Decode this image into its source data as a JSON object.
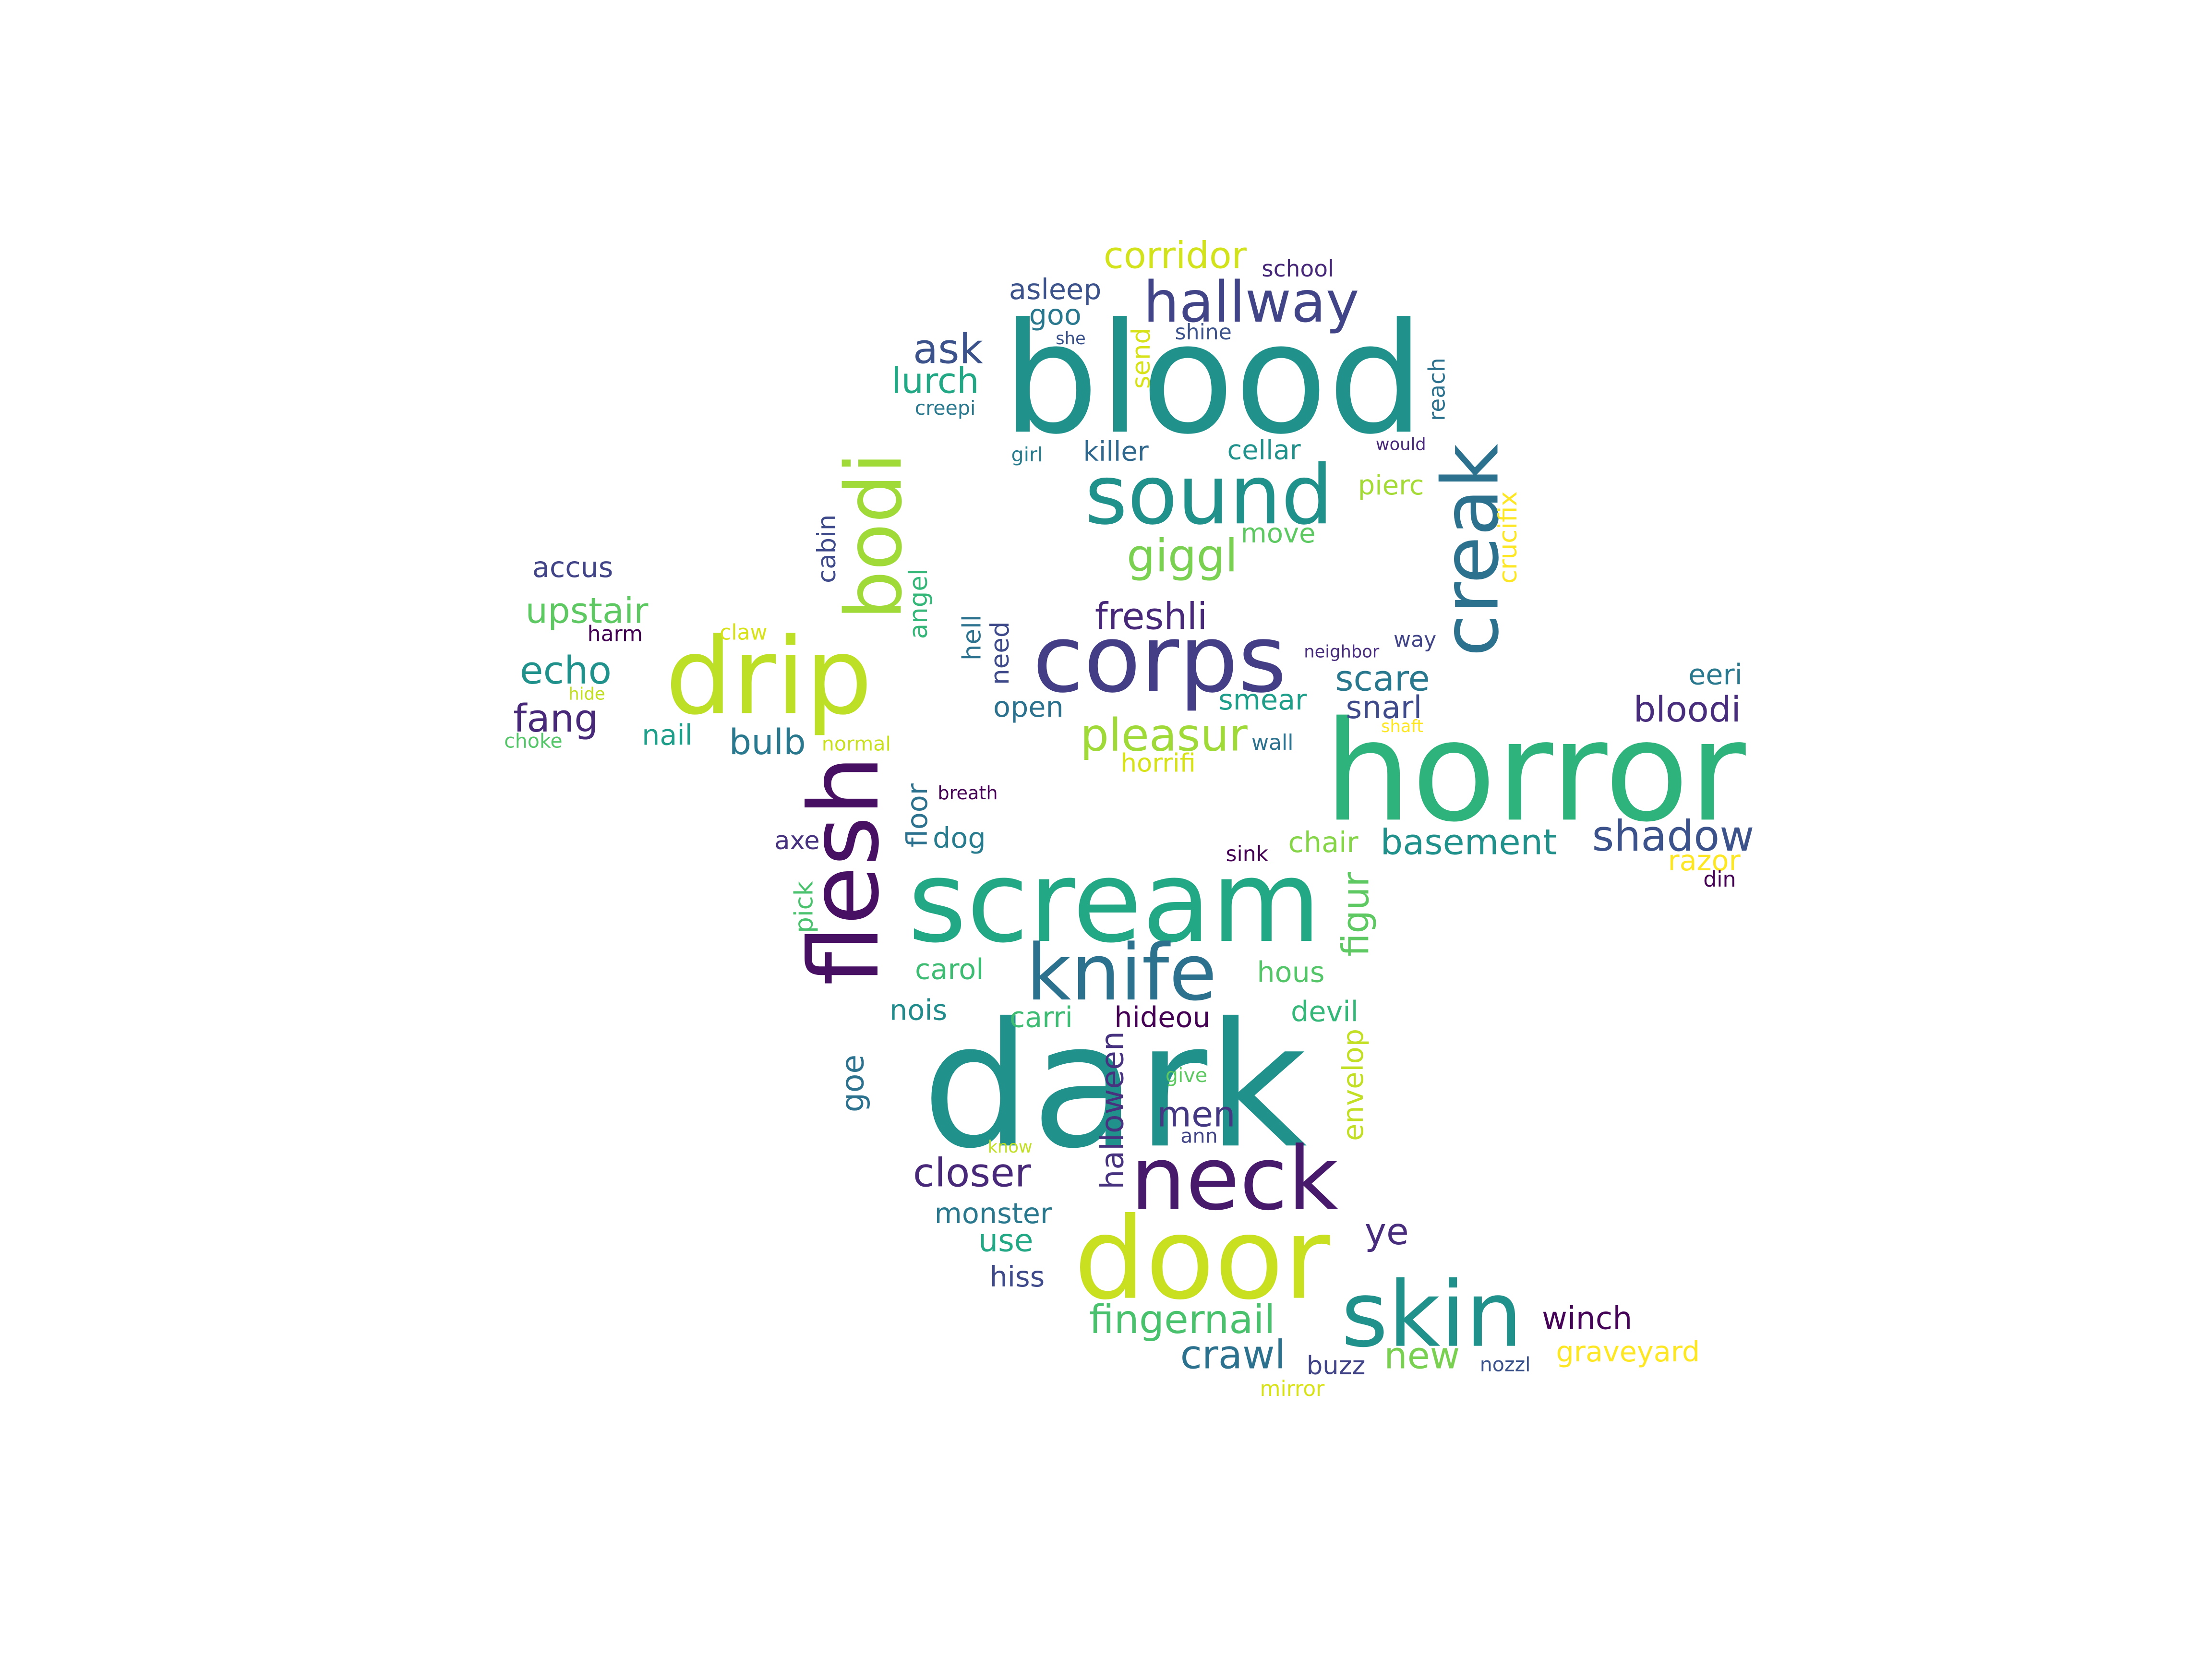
{
  "words": [
    {
      "text": "blood",
      "color": "#21918c",
      "rotate": false
    },
    {
      "text": "dark",
      "color": "#21918c",
      "rotate": false
    },
    {
      "text": "horror",
      "color": "#2eb37c",
      "rotate": false
    },
    {
      "text": "scream",
      "color": "#22a884",
      "rotate": false
    },
    {
      "text": "door",
      "color": "#c8e020",
      "rotate": false
    },
    {
      "text": "corps",
      "color": "#433e85",
      "rotate": false
    },
    {
      "text": "drip",
      "color": "#bddf26",
      "rotate": false
    },
    {
      "text": "sound",
      "color": "#21918c",
      "rotate": false
    },
    {
      "text": "neck",
      "color": "#481a6c",
      "rotate": false
    },
    {
      "text": "skin",
      "color": "#21918c",
      "rotate": false
    },
    {
      "text": "knife",
      "color": "#2c728e",
      "rotate": false
    },
    {
      "text": "flesh",
      "color": "#471063",
      "rotate": true
    },
    {
      "text": "bodi",
      "color": "#a0da39",
      "rotate": true
    },
    {
      "text": "creak",
      "color": "#2c728e",
      "rotate": true
    },
    {
      "text": "hallway",
      "color": "#414487",
      "rotate": false
    },
    {
      "text": "pleasur",
      "color": "#a0da39",
      "rotate": false
    },
    {
      "text": "shadow",
      "color": "#3b528b",
      "rotate": false
    },
    {
      "text": "basement",
      "color": "#21918c",
      "rotate": false
    },
    {
      "text": "closer",
      "color": "#482878",
      "rotate": false
    },
    {
      "text": "fingernail",
      "color": "#4ac16d",
      "rotate": false
    },
    {
      "text": "crawl",
      "color": "#2c728e",
      "rotate": false
    },
    {
      "text": "giggl",
      "color": "#7ad151",
      "rotate": false
    },
    {
      "text": "freshli",
      "color": "#482878",
      "rotate": false
    },
    {
      "text": "corridor",
      "color": "#d2e21b",
      "rotate": false
    },
    {
      "text": "upstair",
      "color": "#5ec962",
      "rotate": false
    },
    {
      "text": "echo",
      "color": "#21918c",
      "rotate": false
    },
    {
      "text": "fang",
      "color": "#482878",
      "rotate": false
    },
    {
      "text": "bulb",
      "color": "#2a788e",
      "rotate": false
    },
    {
      "text": "bloodi",
      "color": "#472d7b",
      "rotate": false
    },
    {
      "text": "ask",
      "color": "#3b528b",
      "rotate": false
    },
    {
      "text": "lurch",
      "color": "#22a884",
      "rotate": false
    },
    {
      "text": "scare",
      "color": "#2a788e",
      "rotate": false
    },
    {
      "text": "snarl",
      "color": "#3e4a89",
      "rotate": false
    },
    {
      "text": "men",
      "color": "#453882",
      "rotate": false
    },
    {
      "text": "ye",
      "color": "#472d7b",
      "rotate": false
    },
    {
      "text": "new",
      "color": "#7ad151",
      "rotate": false
    },
    {
      "text": "winch",
      "color": "#450457",
      "rotate": false
    },
    {
      "text": "graveyard",
      "color": "#fde725",
      "rotate": false
    },
    {
      "text": "use",
      "color": "#22a884",
      "rotate": false
    },
    {
      "text": "monster",
      "color": "#2a788e",
      "rotate": false
    },
    {
      "text": "hiss",
      "color": "#3e4a89",
      "rotate": false
    },
    {
      "text": "buzz",
      "color": "#414487",
      "rotate": false
    },
    {
      "text": "hideou",
      "color": "#440154",
      "rotate": false
    },
    {
      "text": "devil",
      "color": "#35b779",
      "rotate": false
    },
    {
      "text": "hous",
      "color": "#54c568",
      "rotate": false
    },
    {
      "text": "carol",
      "color": "#3fbc73",
      "rotate": false
    },
    {
      "text": "nois",
      "color": "#228c8d",
      "rotate": false
    },
    {
      "text": "carri",
      "color": "#3fbc73",
      "rotate": false
    },
    {
      "text": "chair",
      "color": "#86d549",
      "rotate": false
    },
    {
      "text": "axe",
      "color": "#46327e",
      "rotate": false
    },
    {
      "text": "dog",
      "color": "#287c8e",
      "rotate": false
    },
    {
      "text": "open",
      "color": "#2c728e",
      "rotate": false
    },
    {
      "text": "smear",
      "color": "#1f9e89",
      "rotate": false
    },
    {
      "text": "horrifi",
      "color": "#d8e219",
      "rotate": false
    },
    {
      "text": "move",
      "color": "#5ec962",
      "rotate": false
    },
    {
      "text": "pierc",
      "color": "#a5db36",
      "rotate": false
    },
    {
      "text": "killer",
      "color": "#31688e",
      "rotate": false
    },
    {
      "text": "cellar",
      "color": "#21918c",
      "rotate": false
    },
    {
      "text": "asleep",
      "color": "#3b528b",
      "rotate": false
    },
    {
      "text": "goo",
      "color": "#2a788e",
      "rotate": false
    },
    {
      "text": "accus",
      "color": "#414487",
      "rotate": false
    },
    {
      "text": "nail",
      "color": "#1f9e89",
      "rotate": false
    },
    {
      "text": "eeri",
      "color": "#2a788e",
      "rotate": false
    },
    {
      "text": "razor",
      "color": "#fde725",
      "rotate": false
    },
    {
      "text": "school",
      "color": "#482878",
      "rotate": false
    },
    {
      "text": "shine",
      "color": "#3b528b",
      "rotate": false
    },
    {
      "text": "creepi",
      "color": "#2a788e",
      "rotate": false
    },
    {
      "text": "girl",
      "color": "#287c8e",
      "rotate": false
    },
    {
      "text": "would",
      "color": "#482878",
      "rotate": false
    },
    {
      "text": "she",
      "color": "#3b528b",
      "rotate": false
    },
    {
      "text": "claw",
      "color": "#d8e219",
      "rotate": false
    },
    {
      "text": "harm",
      "color": "#440154",
      "rotate": false
    },
    {
      "text": "hide",
      "color": "#c2df23",
      "rotate": false
    },
    {
      "text": "choke",
      "color": "#54c568",
      "rotate": false
    },
    {
      "text": "normal",
      "color": "#c8e020",
      "rotate": false
    },
    {
      "text": "breath",
      "color": "#440154",
      "rotate": false
    },
    {
      "text": "wall",
      "color": "#2c728e",
      "rotate": false
    },
    {
      "text": "shaft",
      "color": "#fde725",
      "rotate": false
    },
    {
      "text": "neighbor",
      "color": "#472d7b",
      "rotate": false
    },
    {
      "text": "way",
      "color": "#414487",
      "rotate": false
    },
    {
      "text": "sink",
      "color": "#440154",
      "rotate": false
    },
    {
      "text": "din",
      "color": "#440154",
      "rotate": false
    },
    {
      "text": "give",
      "color": "#5ec962",
      "rotate": false
    },
    {
      "text": "ann",
      "color": "#414487",
      "rotate": false
    },
    {
      "text": "know",
      "color": "#c2df23",
      "rotate": false
    },
    {
      "text": "nozzl",
      "color": "#3b528b",
      "rotate": false
    },
    {
      "text": "mirror",
      "color": "#d8e219",
      "rotate": false
    },
    {
      "text": "cabin",
      "color": "#3e4a89",
      "rotate": true
    },
    {
      "text": "angel",
      "color": "#35b779",
      "rotate": true
    },
    {
      "text": "hell",
      "color": "#2c728e",
      "rotate": true
    },
    {
      "text": "need",
      "color": "#3e4a89",
      "rotate": true
    },
    {
      "text": "send",
      "color": "#d8e219",
      "rotate": true
    },
    {
      "text": "reach",
      "color": "#2c728e",
      "rotate": true
    },
    {
      "text": "crucifix",
      "color": "#fde725",
      "rotate": true
    },
    {
      "text": "floor",
      "color": "#2c728e",
      "rotate": true
    },
    {
      "text": "pick",
      "color": "#4ac16d",
      "rotate": true
    },
    {
      "text": "goe",
      "color": "#2c728e",
      "rotate": true
    },
    {
      "text": "halloween",
      "color": "#46327e",
      "rotate": true
    },
    {
      "text": "envelop",
      "color": "#c2df23",
      "rotate": true
    },
    {
      "text": "figur",
      "color": "#5ec962",
      "rotate": true
    }
  ]
}
